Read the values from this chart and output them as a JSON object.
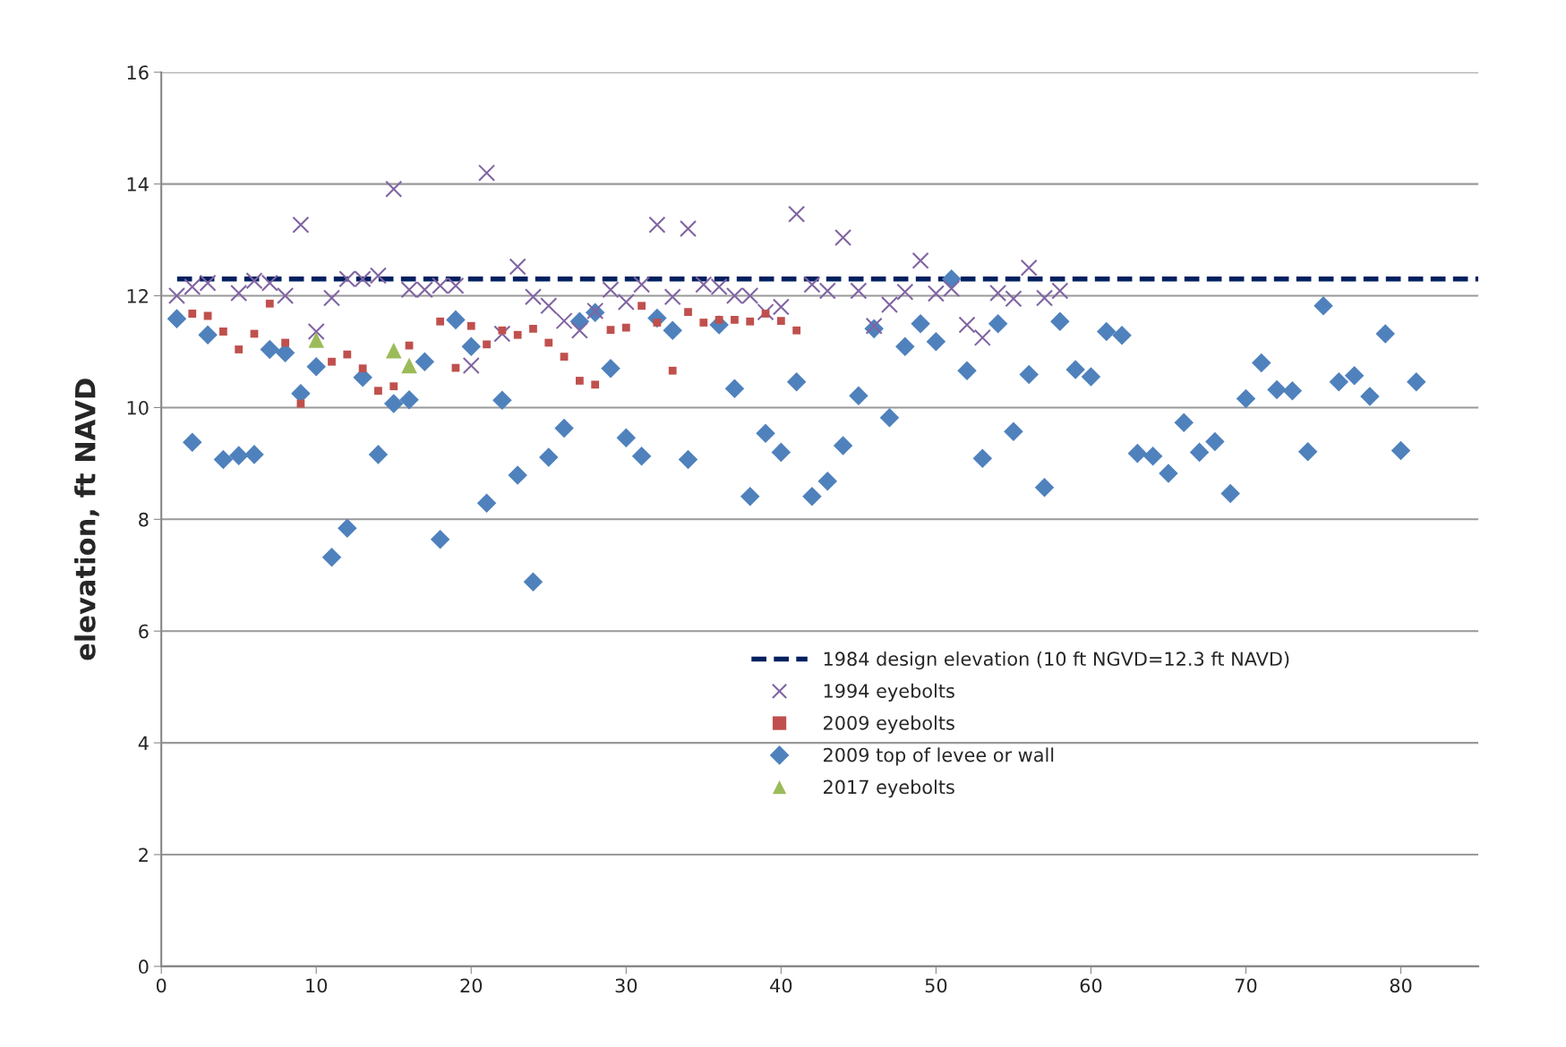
{
  "chart_data": {
    "type": "scatter",
    "ylabel": "elevation, ft NAVD",
    "xlim": [
      0,
      85
    ],
    "xticks": [
      0,
      10,
      20,
      30,
      40,
      50,
      60,
      70,
      80
    ],
    "ylim": [
      0,
      16
    ],
    "yticks": [
      0,
      2,
      4,
      6,
      8,
      10,
      12,
      14,
      16
    ],
    "grid": "y",
    "legend": "bottom right",
    "ref_lines": [
      {
        "axis": "y",
        "value": 12.3,
        "label": "1984 design elevation (10 ft NGVD=12.3 ft NAVD)",
        "color": "#002060",
        "line_style": "dashed"
      }
    ],
    "series": [
      {
        "name": "1994 eyebolts",
        "color": "#8064a2",
        "marker": "cross",
        "x": [
          1,
          2,
          3,
          5,
          6,
          7,
          8,
          9,
          10,
          11,
          12,
          13,
          14,
          15,
          16,
          17,
          18,
          19,
          20,
          21,
          22,
          23,
          24,
          25,
          26,
          27,
          28,
          29,
          30,
          31,
          32,
          33,
          34,
          35,
          36,
          37,
          38,
          39,
          40,
          41,
          42,
          43,
          44,
          45,
          46,
          47,
          48,
          49,
          50,
          51,
          52,
          53,
          54,
          55,
          56,
          57,
          58
        ],
        "values": [
          12.0,
          12.16,
          12.23,
          12.05,
          12.27,
          12.23,
          12.0,
          13.27,
          11.36,
          11.96,
          12.3,
          12.3,
          12.36,
          13.91,
          12.11,
          12.11,
          12.18,
          12.18,
          10.75,
          14.2,
          11.32,
          12.52,
          11.98,
          11.82,
          11.55,
          11.38,
          11.73,
          12.11,
          11.89,
          12.2,
          13.27,
          11.98,
          13.2,
          12.2,
          12.16,
          12.0,
          12.0,
          11.71,
          11.8,
          13.46,
          12.2,
          12.09,
          13.04,
          12.09,
          11.46,
          11.84,
          12.07,
          12.63,
          12.04,
          12.13,
          11.48,
          11.25,
          12.05,
          11.95,
          12.5,
          11.96,
          12.09
        ]
      },
      {
        "name": "2009 eyebolts",
        "color": "#c0504d",
        "marker": "square",
        "x": [
          2,
          3,
          4,
          5,
          6,
          7,
          8,
          9,
          11,
          12,
          13,
          14,
          15,
          16,
          18,
          19,
          20,
          21,
          22,
          23,
          24,
          25,
          26,
          27,
          28,
          29,
          30,
          31,
          32,
          33,
          34,
          35,
          36,
          37,
          38,
          39,
          40,
          41
        ],
        "values": [
          11.68,
          11.64,
          11.36,
          11.04,
          11.32,
          11.86,
          11.16,
          10.07,
          10.82,
          10.95,
          10.7,
          10.3,
          10.38,
          11.11,
          11.54,
          10.71,
          11.46,
          11.13,
          11.38,
          11.3,
          11.41,
          11.16,
          10.91,
          10.48,
          10.41,
          11.39,
          11.43,
          11.82,
          11.52,
          10.66,
          11.71,
          11.52,
          11.57,
          11.57,
          11.54,
          11.68,
          11.55,
          11.38
        ]
      },
      {
        "name": "2009 top of levee or wall",
        "color": "#4f81bd",
        "marker": "diamond",
        "x": [
          1,
          2,
          3,
          4,
          5,
          6,
          7,
          8,
          9,
          10,
          11,
          12,
          13,
          14,
          15,
          16,
          17,
          18,
          19,
          20,
          21,
          22,
          23,
          24,
          25,
          26,
          27,
          28,
          29,
          30,
          31,
          32,
          33,
          34,
          36,
          37,
          38,
          39,
          40,
          41,
          42,
          43,
          44,
          45,
          46,
          47,
          48,
          49,
          50,
          51,
          52,
          53,
          54,
          55,
          56,
          57,
          58,
          59,
          60,
          61,
          62,
          63,
          64,
          65,
          66,
          67,
          68,
          69,
          70,
          71,
          72,
          73,
          74,
          75,
          76,
          77,
          78,
          79,
          80,
          81
        ],
        "values": [
          11.59,
          9.38,
          11.3,
          9.07,
          9.14,
          9.16,
          11.04,
          10.98,
          10.25,
          10.73,
          7.32,
          7.84,
          10.54,
          9.16,
          10.07,
          10.14,
          10.82,
          7.64,
          11.57,
          11.09,
          8.29,
          10.13,
          8.79,
          6.88,
          9.11,
          9.63,
          11.54,
          11.7,
          10.7,
          9.46,
          9.13,
          11.6,
          11.38,
          9.07,
          11.48,
          10.34,
          8.41,
          9.54,
          9.2,
          10.46,
          8.41,
          8.68,
          9.32,
          10.21,
          11.41,
          9.82,
          11.09,
          11.5,
          11.18,
          12.3,
          10.66,
          9.09,
          11.5,
          9.57,
          10.59,
          8.57,
          11.54,
          10.68,
          10.55,
          11.36,
          11.29,
          9.18,
          9.13,
          8.82,
          9.73,
          9.2,
          9.39,
          8.46,
          10.16,
          10.8,
          10.32,
          10.3,
          9.21,
          11.82,
          10.46,
          10.57,
          10.2,
          11.32,
          9.23,
          10.46
        ]
      },
      {
        "name": "2017 eyebolts",
        "color": "#9bbb59",
        "marker": "triangle",
        "x": [
          10,
          15,
          16
        ],
        "values": [
          11.21,
          11.02,
          10.75
        ]
      }
    ]
  }
}
